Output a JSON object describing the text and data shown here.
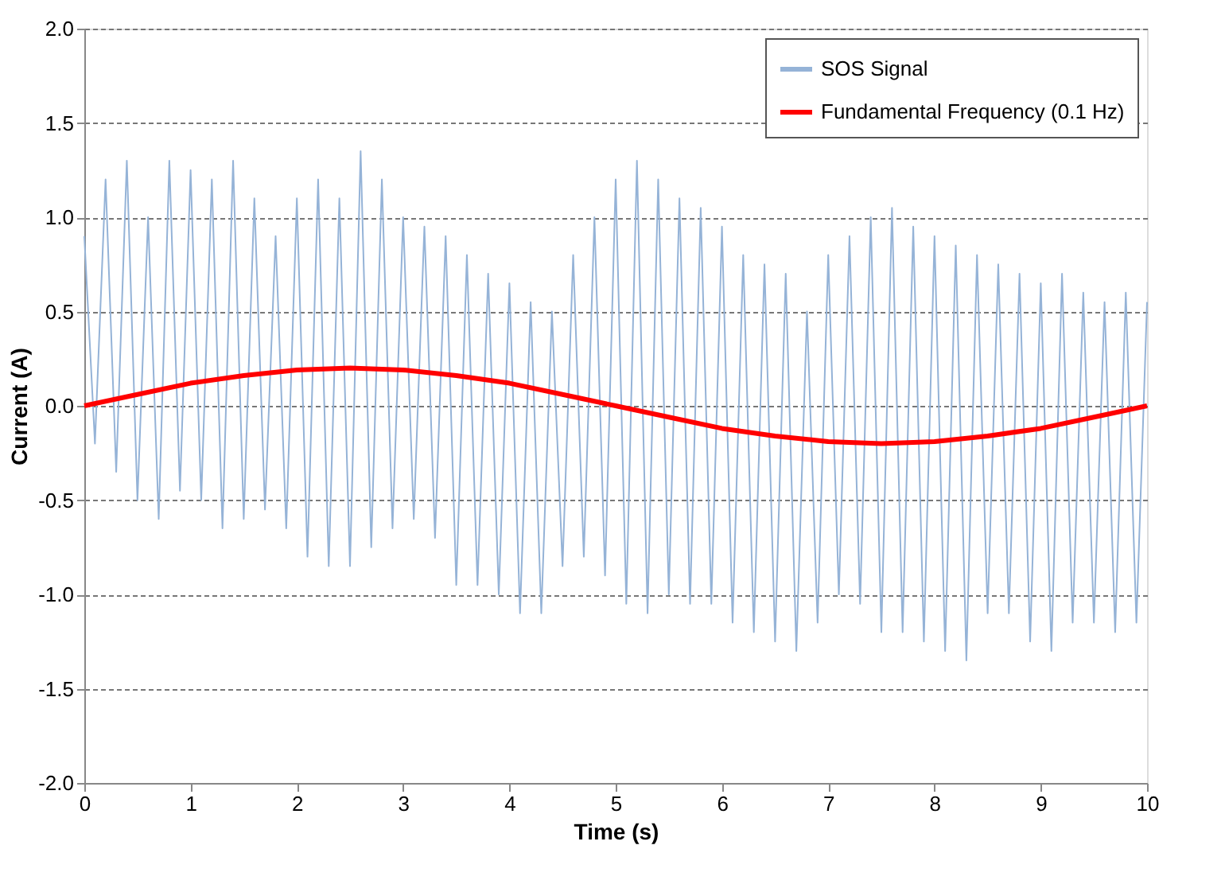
{
  "chart_data": {
    "type": "line",
    "xlabel": "Time (s)",
    "ylabel": "Current (A)",
    "xlim": [
      0,
      10
    ],
    "xticks": [
      0,
      1,
      2,
      3,
      4,
      5,
      6,
      7,
      8,
      9,
      10
    ],
    "ylim": [
      -2.0,
      2.0
    ],
    "yticks": [
      {
        "value": -2,
        "label": "-2.0"
      },
      {
        "value": -1.5,
        "label": "-1.5"
      },
      {
        "value": -1,
        "label": "-1.0"
      },
      {
        "value": -0.5,
        "label": "-0.5"
      },
      {
        "value": 0,
        "label": "0.0"
      },
      {
        "value": 0.5,
        "label": "0.5"
      },
      {
        "value": 1,
        "label": "1.0"
      },
      {
        "value": 1.5,
        "label": "1.5"
      },
      {
        "value": 2,
        "label": "2.0"
      }
    ],
    "grid": "y",
    "legend": "top right",
    "marker": "none",
    "line_style": "solid",
    "series": [
      {
        "name": "SOS Signal",
        "color": "#95b3d7",
        "x": [
          0,
          0.1,
          0.2,
          0.3,
          0.4,
          0.5,
          0.6,
          0.7,
          0.8,
          0.9,
          1,
          1.1,
          1.2,
          1.3,
          1.4,
          1.5,
          1.6,
          1.7,
          1.8,
          1.9,
          2,
          2.1,
          2.2,
          2.3,
          2.4,
          2.5,
          2.6,
          2.7,
          2.8,
          2.9,
          3,
          3.1,
          3.2,
          3.3,
          3.4,
          3.5,
          3.6,
          3.7,
          3.8,
          3.9,
          4,
          4.1,
          4.2,
          4.3,
          4.4,
          4.5,
          4.6,
          4.7,
          4.8,
          4.9,
          5,
          5.1,
          5.2,
          5.3,
          5.4,
          5.5,
          5.6,
          5.7,
          5.8,
          5.9,
          6,
          6.1,
          6.2,
          6.3,
          6.4,
          6.5,
          6.6,
          6.7,
          6.8,
          6.9,
          7,
          7.1,
          7.2,
          7.3,
          7.4,
          7.5,
          7.6,
          7.7,
          7.8,
          7.9,
          8,
          8.1,
          8.2,
          8.3,
          8.4,
          8.5,
          8.6,
          8.7,
          8.8,
          8.9,
          9,
          9.1,
          9.2,
          9.3,
          9.4,
          9.5,
          9.6,
          9.7,
          9.8,
          9.9,
          10
        ],
        "values": [
          0.9,
          -0.2,
          1.2,
          -0.35,
          1.3,
          -0.5,
          1.0,
          -0.6,
          1.3,
          -0.45,
          1.25,
          -0.5,
          1.2,
          -0.65,
          1.3,
          -0.6,
          1.1,
          -0.55,
          0.9,
          -0.65,
          1.1,
          -0.8,
          1.2,
          -0.85,
          1.1,
          -0.85,
          1.35,
          -0.75,
          1.2,
          -0.65,
          1.0,
          -0.6,
          0.95,
          -0.7,
          0.9,
          -0.95,
          0.8,
          -0.95,
          0.7,
          -1.0,
          0.65,
          -1.1,
          0.55,
          -1.1,
          0.5,
          -0.85,
          0.8,
          -0.8,
          1.0,
          -0.9,
          1.2,
          -1.05,
          1.3,
          -1.1,
          1.2,
          -1.0,
          1.1,
          -1.05,
          1.05,
          -1.05,
          0.95,
          -1.15,
          0.8,
          -1.2,
          0.75,
          -1.25,
          0.7,
          -1.3,
          0.5,
          -1.15,
          0.8,
          -1.0,
          0.9,
          -1.05,
          1.0,
          -1.2,
          1.05,
          -1.2,
          0.95,
          -1.25,
          0.9,
          -1.3,
          0.85,
          -1.35,
          0.8,
          -1.1,
          0.75,
          -1.1,
          0.7,
          -1.25,
          0.65,
          -1.3,
          0.7,
          -1.15,
          0.6,
          -1.15,
          0.55,
          -1.2,
          0.6,
          -1.15,
          0.55
        ]
      },
      {
        "name": "Fundamental Frequency (0.1 Hz)",
        "color": "#ff0000",
        "x": [
          0,
          0.5,
          1,
          1.5,
          2,
          2.5,
          3,
          3.5,
          4,
          4.5,
          5,
          5.5,
          6,
          6.5,
          7,
          7.5,
          8,
          8.5,
          9,
          9.5,
          10
        ],
        "values": [
          0,
          0.06,
          0.12,
          0.16,
          0.19,
          0.2,
          0.19,
          0.16,
          0.12,
          0.06,
          0,
          -0.06,
          -0.12,
          -0.16,
          -0.19,
          -0.2,
          -0.19,
          -0.16,
          -0.12,
          -0.06,
          0
        ]
      }
    ]
  }
}
